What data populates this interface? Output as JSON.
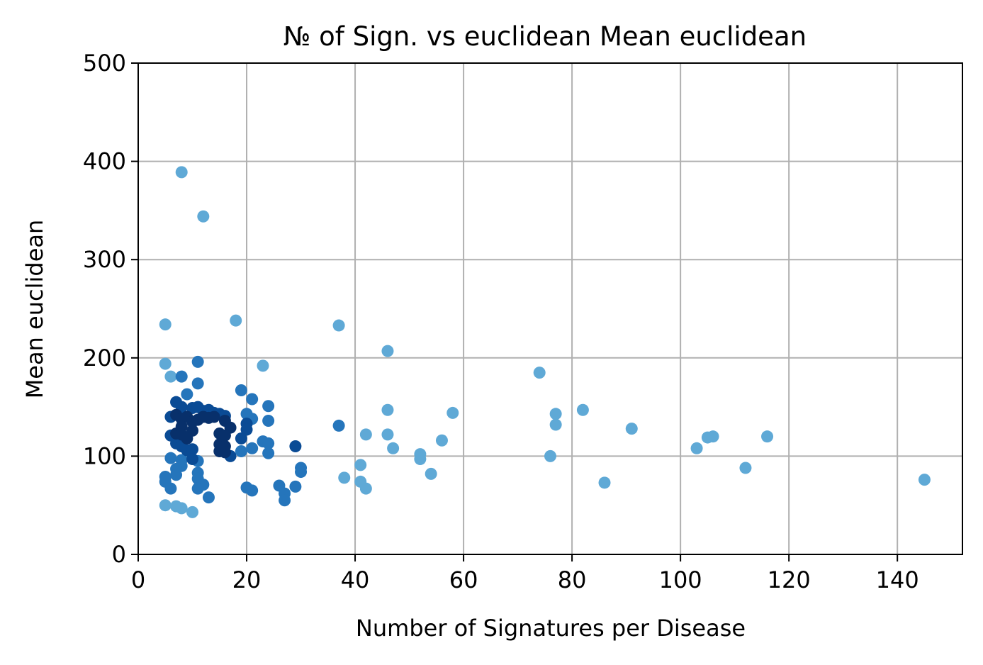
{
  "chart_data": {
    "type": "scatter",
    "title": "№ of Sign. vs euclidean Mean euclidean",
    "xlabel": "Number of Signatures per Disease",
    "ylabel": "Mean euclidean",
    "xlim": [
      0,
      152
    ],
    "ylim": [
      0,
      500
    ],
    "xticks": [
      0,
      20,
      40,
      60,
      80,
      100,
      120,
      140
    ],
    "yticks": [
      0,
      100,
      200,
      300,
      400,
      500
    ],
    "grid": true,
    "colormap": "Blues (darker = denser region)",
    "colors": {
      "light": "#5fa9d6",
      "medium": "#2575bb",
      "dark": "#0a4b95",
      "darkest": "#08306b",
      "grid": "#b0b0b0"
    },
    "points": [
      {
        "x": 8,
        "y": 389,
        "c": "light"
      },
      {
        "x": 12,
        "y": 344,
        "c": "light"
      },
      {
        "x": 5,
        "y": 234,
        "c": "light"
      },
      {
        "x": 18,
        "y": 238,
        "c": "light"
      },
      {
        "x": 37,
        "y": 233,
        "c": "light"
      },
      {
        "x": 46,
        "y": 207,
        "c": "light"
      },
      {
        "x": 5,
        "y": 194,
        "c": "light"
      },
      {
        "x": 11,
        "y": 196,
        "c": "medium"
      },
      {
        "x": 23,
        "y": 192,
        "c": "light"
      },
      {
        "x": 6,
        "y": 181,
        "c": "light"
      },
      {
        "x": 8,
        "y": 181,
        "c": "medium"
      },
      {
        "x": 11,
        "y": 174,
        "c": "medium"
      },
      {
        "x": 19,
        "y": 167,
        "c": "medium"
      },
      {
        "x": 9,
        "y": 163,
        "c": "medium"
      },
      {
        "x": 21,
        "y": 158,
        "c": "medium"
      },
      {
        "x": 24,
        "y": 151,
        "c": "medium"
      },
      {
        "x": 7,
        "y": 155,
        "c": "dark"
      },
      {
        "x": 8,
        "y": 150,
        "c": "dark"
      },
      {
        "x": 10,
        "y": 149,
        "c": "dark"
      },
      {
        "x": 11,
        "y": 150,
        "c": "dark"
      },
      {
        "x": 12,
        "y": 146,
        "c": "dark"
      },
      {
        "x": 13,
        "y": 147,
        "c": "dark"
      },
      {
        "x": 14,
        "y": 144,
        "c": "dark"
      },
      {
        "x": 15,
        "y": 143,
        "c": "dark"
      },
      {
        "x": 16,
        "y": 141,
        "c": "dark"
      },
      {
        "x": 20,
        "y": 143,
        "c": "medium"
      },
      {
        "x": 21,
        "y": 138,
        "c": "medium"
      },
      {
        "x": 24,
        "y": 136,
        "c": "medium"
      },
      {
        "x": 6,
        "y": 140,
        "c": "dark"
      },
      {
        "x": 7,
        "y": 142,
        "c": "darkest"
      },
      {
        "x": 8,
        "y": 138,
        "c": "darkest"
      },
      {
        "x": 9,
        "y": 140,
        "c": "darkest"
      },
      {
        "x": 10,
        "y": 135,
        "c": "darkest"
      },
      {
        "x": 11,
        "y": 137,
        "c": "darkest"
      },
      {
        "x": 12,
        "y": 140,
        "c": "darkest"
      },
      {
        "x": 13,
        "y": 139,
        "c": "darkest"
      },
      {
        "x": 14,
        "y": 140,
        "c": "darkest"
      },
      {
        "x": 16,
        "y": 136,
        "c": "darkest"
      },
      {
        "x": 17,
        "y": 129,
        "c": "darkest"
      },
      {
        "x": 20,
        "y": 133,
        "c": "dark"
      },
      {
        "x": 20,
        "y": 127,
        "c": "dark"
      },
      {
        "x": 8,
        "y": 130,
        "c": "darkest"
      },
      {
        "x": 10,
        "y": 126,
        "c": "darkest"
      },
      {
        "x": 6,
        "y": 121,
        "c": "dark"
      },
      {
        "x": 7,
        "y": 123,
        "c": "darkest"
      },
      {
        "x": 8,
        "y": 122,
        "c": "darkest"
      },
      {
        "x": 9,
        "y": 118,
        "c": "darkest"
      },
      {
        "x": 15,
        "y": 123,
        "c": "darkest"
      },
      {
        "x": 16,
        "y": 121,
        "c": "darkest"
      },
      {
        "x": 19,
        "y": 118,
        "c": "dark"
      },
      {
        "x": 7,
        "y": 113,
        "c": "dark"
      },
      {
        "x": 8,
        "y": 110,
        "c": "dark"
      },
      {
        "x": 15,
        "y": 112,
        "c": "darkest"
      },
      {
        "x": 16,
        "y": 110,
        "c": "darkest"
      },
      {
        "x": 23,
        "y": 115,
        "c": "medium"
      },
      {
        "x": 24,
        "y": 113,
        "c": "medium"
      },
      {
        "x": 29,
        "y": 110,
        "c": "dark"
      },
      {
        "x": 9,
        "y": 106,
        "c": "dark"
      },
      {
        "x": 10,
        "y": 107,
        "c": "dark"
      },
      {
        "x": 15,
        "y": 105,
        "c": "darkest"
      },
      {
        "x": 16,
        "y": 104,
        "c": "darkest"
      },
      {
        "x": 17,
        "y": 100,
        "c": "dark"
      },
      {
        "x": 19,
        "y": 105,
        "c": "medium"
      },
      {
        "x": 21,
        "y": 108,
        "c": "medium"
      },
      {
        "x": 24,
        "y": 103,
        "c": "medium"
      },
      {
        "x": 6,
        "y": 98,
        "c": "medium"
      },
      {
        "x": 8,
        "y": 96,
        "c": "medium"
      },
      {
        "x": 10,
        "y": 97,
        "c": "dark"
      },
      {
        "x": 11,
        "y": 95,
        "c": "medium"
      },
      {
        "x": 8,
        "y": 90,
        "c": "medium"
      },
      {
        "x": 7,
        "y": 87,
        "c": "medium"
      },
      {
        "x": 7,
        "y": 81,
        "c": "medium"
      },
      {
        "x": 11,
        "y": 83,
        "c": "medium"
      },
      {
        "x": 11,
        "y": 77,
        "c": "medium"
      },
      {
        "x": 5,
        "y": 79,
        "c": "medium"
      },
      {
        "x": 5,
        "y": 74,
        "c": "medium"
      },
      {
        "x": 12,
        "y": 71,
        "c": "medium"
      },
      {
        "x": 11,
        "y": 67,
        "c": "medium"
      },
      {
        "x": 6,
        "y": 67,
        "c": "medium"
      },
      {
        "x": 13,
        "y": 58,
        "c": "medium"
      },
      {
        "x": 20,
        "y": 68,
        "c": "medium"
      },
      {
        "x": 21,
        "y": 65,
        "c": "medium"
      },
      {
        "x": 26,
        "y": 70,
        "c": "medium"
      },
      {
        "x": 27,
        "y": 62,
        "c": "medium"
      },
      {
        "x": 27,
        "y": 55,
        "c": "medium"
      },
      {
        "x": 29,
        "y": 69,
        "c": "medium"
      },
      {
        "x": 30,
        "y": 88,
        "c": "medium"
      },
      {
        "x": 30,
        "y": 84,
        "c": "medium"
      },
      {
        "x": 5,
        "y": 50,
        "c": "light"
      },
      {
        "x": 7,
        "y": 49,
        "c": "light"
      },
      {
        "x": 8,
        "y": 47,
        "c": "light"
      },
      {
        "x": 10,
        "y": 43,
        "c": "light"
      },
      {
        "x": 37,
        "y": 131,
        "c": "medium"
      },
      {
        "x": 38,
        "y": 78,
        "c": "light"
      },
      {
        "x": 41,
        "y": 91,
        "c": "light"
      },
      {
        "x": 41,
        "y": 74,
        "c": "light"
      },
      {
        "x": 42,
        "y": 122,
        "c": "light"
      },
      {
        "x": 42,
        "y": 67,
        "c": "light"
      },
      {
        "x": 46,
        "y": 147,
        "c": "light"
      },
      {
        "x": 46,
        "y": 122,
        "c": "light"
      },
      {
        "x": 47,
        "y": 108,
        "c": "light"
      },
      {
        "x": 52,
        "y": 102,
        "c": "light"
      },
      {
        "x": 52,
        "y": 97,
        "c": "light"
      },
      {
        "x": 54,
        "y": 82,
        "c": "light"
      },
      {
        "x": 56,
        "y": 116,
        "c": "light"
      },
      {
        "x": 58,
        "y": 144,
        "c": "light"
      },
      {
        "x": 74,
        "y": 185,
        "c": "light"
      },
      {
        "x": 76,
        "y": 100,
        "c": "light"
      },
      {
        "x": 77,
        "y": 143,
        "c": "light"
      },
      {
        "x": 77,
        "y": 132,
        "c": "light"
      },
      {
        "x": 82,
        "y": 147,
        "c": "light"
      },
      {
        "x": 86,
        "y": 73,
        "c": "light"
      },
      {
        "x": 91,
        "y": 128,
        "c": "light"
      },
      {
        "x": 103,
        "y": 108,
        "c": "light"
      },
      {
        "x": 105,
        "y": 119,
        "c": "light"
      },
      {
        "x": 106,
        "y": 120,
        "c": "light"
      },
      {
        "x": 112,
        "y": 88,
        "c": "light"
      },
      {
        "x": 116,
        "y": 120,
        "c": "light"
      },
      {
        "x": 145,
        "y": 76,
        "c": "light"
      }
    ]
  }
}
